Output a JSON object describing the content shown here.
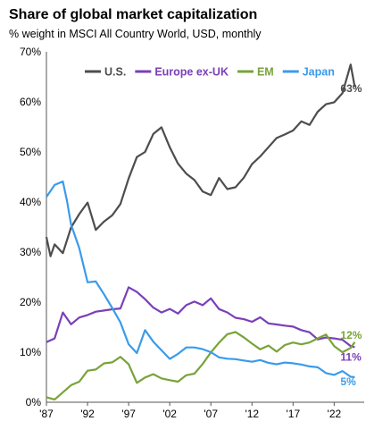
{
  "chart_data": {
    "type": "line",
    "title": "Share of global market capitalization",
    "subtitle": "% weight in MSCI All Country World, USD, monthly",
    "xlabel": "",
    "ylabel": "",
    "xlim": [
      1987,
      2025
    ],
    "ylim": [
      0,
      70
    ],
    "grid": false,
    "legend_position": "top",
    "x_ticks": [
      "'87",
      "'92",
      "'97",
      "'02",
      "'07",
      "'12",
      "'17",
      "'22"
    ],
    "x_tick_years": [
      1987,
      1992,
      1997,
      2002,
      2007,
      2012,
      2017,
      2022
    ],
    "y_ticks": [
      "0%",
      "10%",
      "20%",
      "30%",
      "40%",
      "50%",
      "60%",
      "70%"
    ],
    "y_tick_values": [
      0,
      10,
      20,
      30,
      40,
      50,
      60,
      70
    ],
    "series": [
      {
        "name": "U.S.",
        "color": "#4d4d4d",
        "end_label": "63%",
        "x": [
          1987,
          1987.5,
          1988,
          1989,
          1990,
          1991,
          1992,
          1993,
          1994,
          1995,
          1996,
          1997,
          1998,
          1999,
          2000,
          2001,
          2002,
          2003,
          2004,
          2005,
          2006,
          2007,
          2008,
          2009,
          2010,
          2011,
          2012,
          2013,
          2014,
          2015,
          2016,
          2017,
          2018,
          2019,
          2020,
          2021,
          2022,
          2023,
          2024,
          2024.5
        ],
        "y": [
          33,
          29,
          31,
          30,
          35,
          38,
          40,
          34,
          36,
          37,
          40,
          45,
          49,
          50,
          53,
          55,
          51,
          48,
          46,
          44,
          42,
          41,
          45,
          43,
          43,
          45,
          47,
          49,
          51,
          53,
          54,
          54,
          56,
          55,
          58,
          60,
          60,
          62,
          67,
          63
        ]
      },
      {
        "name": "Europe ex-UK",
        "color": "#7a3fb8",
        "end_label": "11%",
        "x": [
          1987,
          1988,
          1989,
          1990,
          1991,
          1992,
          1993,
          1994,
          1995,
          1996,
          1997,
          1998,
          1999,
          2000,
          2001,
          2002,
          2003,
          2004,
          2005,
          2006,
          2007,
          2008,
          2009,
          2010,
          2011,
          2012,
          2013,
          2014,
          2015,
          2016,
          2017,
          2018,
          2019,
          2020,
          2021,
          2022,
          2023,
          2024,
          2024.5
        ],
        "y": [
          12,
          13,
          18,
          16,
          17,
          17,
          18,
          18,
          19,
          19,
          23,
          22,
          20,
          19,
          18,
          19,
          18,
          19,
          20,
          19,
          21,
          19,
          18,
          17,
          16,
          16,
          17,
          16,
          16,
          15,
          15,
          14,
          14,
          13,
          13,
          13,
          12,
          11,
          11
        ]
      },
      {
        "name": "EM",
        "color": "#79a33a",
        "end_label": "12%",
        "x": [
          1987,
          1988,
          1989,
          1990,
          1991,
          1992,
          1993,
          1994,
          1995,
          1996,
          1997,
          1998,
          1999,
          2000,
          2001,
          2002,
          2003,
          2004,
          2005,
          2006,
          2007,
          2008,
          2009,
          2010,
          2011,
          2012,
          2013,
          2014,
          2015,
          2016,
          2017,
          2018,
          2019,
          2020,
          2021,
          2022,
          2023,
          2024,
          2024.5
        ],
        "y": [
          1,
          1,
          2,
          3,
          4,
          6,
          7,
          8,
          8,
          9,
          7,
          4,
          5,
          6,
          5,
          4,
          4,
          5,
          6,
          8,
          10,
          12,
          13,
          14,
          13,
          12,
          11,
          11,
          10,
          11,
          12,
          12,
          12,
          13,
          13,
          11,
          10,
          11,
          12
        ]
      },
      {
        "name": "Japan",
        "color": "#3b9bea",
        "end_label": "5%",
        "x": [
          1987,
          1988,
          1989,
          1989.5,
          1990,
          1991,
          1992,
          1993,
          1994,
          1995,
          1996,
          1997,
          1998,
          1999,
          2000,
          2001,
          2002,
          2003,
          2004,
          2005,
          2006,
          2007,
          2008,
          2009,
          2010,
          2011,
          2012,
          2013,
          2014,
          2015,
          2016,
          2017,
          2018,
          2019,
          2020,
          2021,
          2022,
          2023,
          2024,
          2024.5
        ],
        "y": [
          41,
          43,
          44,
          40,
          36,
          31,
          24,
          24,
          21,
          19,
          16,
          12,
          10,
          14,
          12,
          10,
          9,
          10,
          11,
          11,
          10,
          10,
          9,
          9,
          9,
          8,
          8,
          8,
          8,
          8,
          8,
          8,
          7,
          7,
          7,
          6,
          6,
          6,
          5,
          5
        ]
      }
    ]
  }
}
